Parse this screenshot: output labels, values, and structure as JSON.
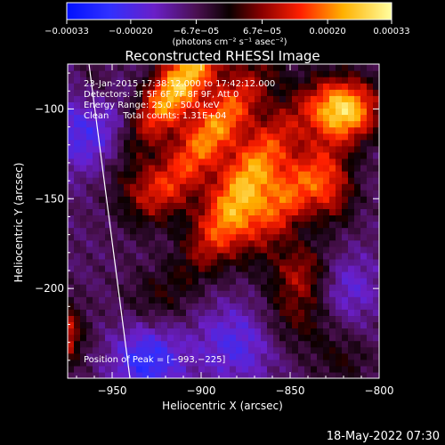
{
  "chart_data": {
    "type": "heatmap",
    "title": "Reconstructed RHESSI Image",
    "xlabel": "Heliocentric X (arcsec)",
    "ylabel": "Heliocentric Y (arcsec)",
    "xlim": [
      -975,
      -800
    ],
    "ylim": [
      -250,
      -75
    ],
    "xticks": [
      -950,
      -900,
      -850,
      -800
    ],
    "xtick_labels": [
      "−950",
      "−900",
      "−850",
      "−800"
    ],
    "yticks": [
      -200,
      -150,
      -100
    ],
    "ytick_labels": [
      "−200",
      "−150",
      "−100"
    ],
    "colorbar": {
      "range": [
        -0.00033,
        0.00033
      ],
      "ticks": [
        -0.00033,
        -0.0002,
        -6.7e-05,
        6.7e-05,
        0.0002,
        0.00033
      ],
      "tick_labels": [
        "−0.00033",
        "−0.00020",
        "−6.7e−05",
        "6.7e−05",
        "0.00020",
        "0.00033"
      ],
      "unit_label": "(photons cm⁻² s⁻¹ asec⁻²)"
    },
    "annotations": [
      "23-Jan-2015 17:38:12.000 to 17:42:12.000",
      "Detectors: 3F 5F 6F 7F 8F 9F, Att 0",
      "Energy Range: 25.0 - 50.0 keV",
      "Clean     Total counts: 1.31E+04"
    ],
    "peak_label": "Position of Peak = [−993,−225]",
    "peak": [
      -993,
      -225
    ],
    "limb_line": {
      "x": [
        -963,
        -940
      ],
      "y": [
        -75,
        -250
      ]
    },
    "sources": [
      {
        "x": -912,
        "y": -86,
        "amp": 1.25,
        "sx": 30,
        "sy": 10,
        "rot": -0.9
      },
      {
        "x": -893,
        "y": -112,
        "amp": 1.05,
        "sx": 32,
        "sy": 10,
        "rot": -0.9
      },
      {
        "x": -872,
        "y": -133,
        "amp": 0.95,
        "sx": 30,
        "sy": 10,
        "rot": -0.9
      },
      {
        "x": -852,
        "y": -150,
        "amp": 0.85,
        "sx": 26,
        "sy": 10,
        "rot": -0.9
      },
      {
        "x": -820,
        "y": -100,
        "amp": 1.25,
        "sx": 14,
        "sy": 12,
        "rot": 0
      },
      {
        "x": -827,
        "y": -145,
        "amp": 0.6,
        "sx": 10,
        "sy": 14,
        "rot": 0
      },
      {
        "x": -885,
        "y": -165,
        "amp": 0.6,
        "sx": 24,
        "sy": 9,
        "rot": -0.9
      },
      {
        "x": -930,
        "y": -145,
        "amp": 0.45,
        "sx": 14,
        "sy": 12,
        "rot": 0
      },
      {
        "x": -925,
        "y": -205,
        "amp": 0.25,
        "sx": 14,
        "sy": 12,
        "rot": 0
      },
      {
        "x": -845,
        "y": -215,
        "amp": 0.4,
        "sx": 16,
        "sy": 14,
        "rot": 0
      },
      {
        "x": -843,
        "y": -190,
        "amp": 0.55,
        "sx": 12,
        "sy": 12,
        "rot": 0
      },
      {
        "x": -960,
        "y": -90,
        "amp": 0.3,
        "sx": 10,
        "sy": 14,
        "rot": 0
      },
      {
        "x": -990,
        "y": -225,
        "amp": 1.8,
        "sx": 12,
        "sy": 12,
        "rot": 0
      },
      {
        "x": -820,
        "y": -240,
        "amp": 0.25,
        "sx": 12,
        "sy": 10,
        "rot": 0
      }
    ],
    "negative_regions": [
      {
        "x": -962,
        "y": -110,
        "amp": 0.55,
        "s": 18
      },
      {
        "x": -930,
        "y": -240,
        "amp": 0.6,
        "s": 14
      },
      {
        "x": -880,
        "y": -230,
        "amp": 0.45,
        "s": 16
      },
      {
        "x": -820,
        "y": -200,
        "amp": 0.4,
        "s": 14
      }
    ]
  },
  "footer": {
    "timestamp": "18-May-2022 07:30"
  }
}
